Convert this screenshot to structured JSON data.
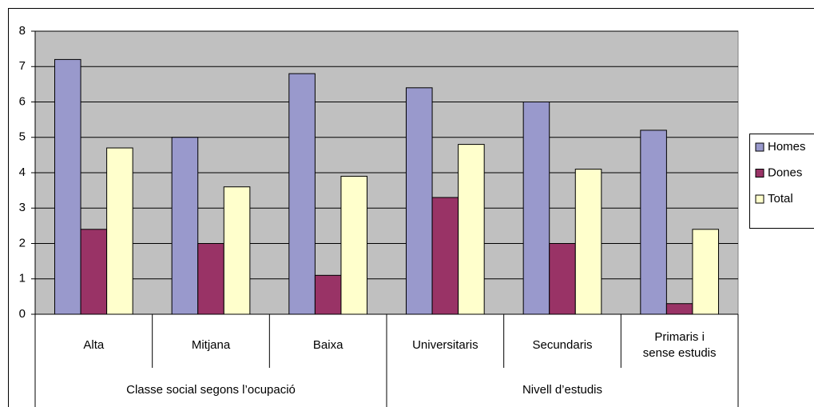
{
  "chart_data": {
    "type": "bar",
    "groups": [
      {
        "name": "Classe social segons l’ocupació",
        "categories": [
          "Alta",
          "Mitjana",
          "Baixa"
        ]
      },
      {
        "name": "Nivell d’estudis",
        "categories": [
          "Universitaris",
          "Secundaris",
          "Primaris i\nsense estudis"
        ]
      }
    ],
    "series": [
      {
        "name": "Homes",
        "color": "#9999cc",
        "values": [
          7.2,
          5,
          6.8,
          6.4,
          6,
          5.2
        ]
      },
      {
        "name": "Dones",
        "color": "#993366",
        "values": [
          2.4,
          2,
          1.1,
          3.3,
          2,
          0.3
        ]
      },
      {
        "name": "Total",
        "color": "#ffffcc",
        "values": [
          4.7,
          3.6,
          3.9,
          4.8,
          4.1,
          2.4
        ]
      }
    ],
    "ylim": [
      0,
      8
    ],
    "yticks": [
      0,
      1,
      2,
      3,
      4,
      5,
      6,
      7,
      8
    ],
    "grid": true,
    "legend": "right"
  }
}
